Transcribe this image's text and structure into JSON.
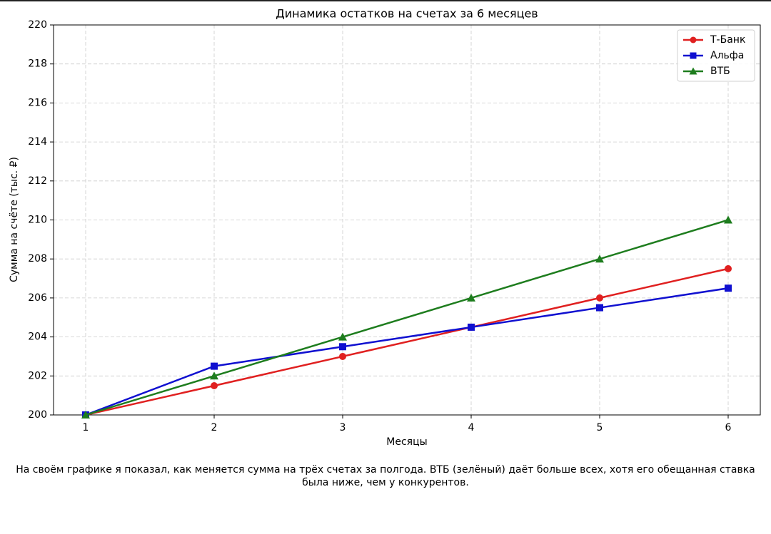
{
  "chart_data": {
    "type": "line",
    "title": "Динамика остатков на счетах за 6 месяцев",
    "x_label": "Месяцы",
    "y_label": "Сумма на счёте (тыс. ₽)",
    "x": [
      1,
      2,
      3,
      4,
      5,
      6
    ],
    "series": [
      {
        "name": "Т-Банк",
        "color": "#e02020",
        "marker": "circle",
        "values": [
          200,
          201.5,
          203,
          204.5,
          206,
          207.5
        ]
      },
      {
        "name": "Альфа",
        "color": "#1010d0",
        "marker": "square",
        "values": [
          200,
          202.5,
          203.5,
          204.5,
          205.5,
          206.5
        ]
      },
      {
        "name": "ВТБ",
        "color": "#1e7d1e",
        "marker": "triangle",
        "values": [
          200,
          202,
          204,
          206,
          208,
          210
        ]
      }
    ],
    "xlim": [
      0.75,
      6.25
    ],
    "xticks": [
      1,
      2,
      3,
      4,
      5,
      6
    ],
    "ylim": [
      200,
      220
    ],
    "yticks": [
      200,
      202,
      204,
      206,
      208,
      210,
      212,
      214,
      216,
      218,
      220
    ],
    "grid": true,
    "legend": "upper-right",
    "caption": "На своём графике я показал, как меняется сумма на трёх счетах за полгода. ВТБ (зелёный) даёт больше всех, хотя его обещанная ставка была ниже, чем у конкурентов."
  }
}
